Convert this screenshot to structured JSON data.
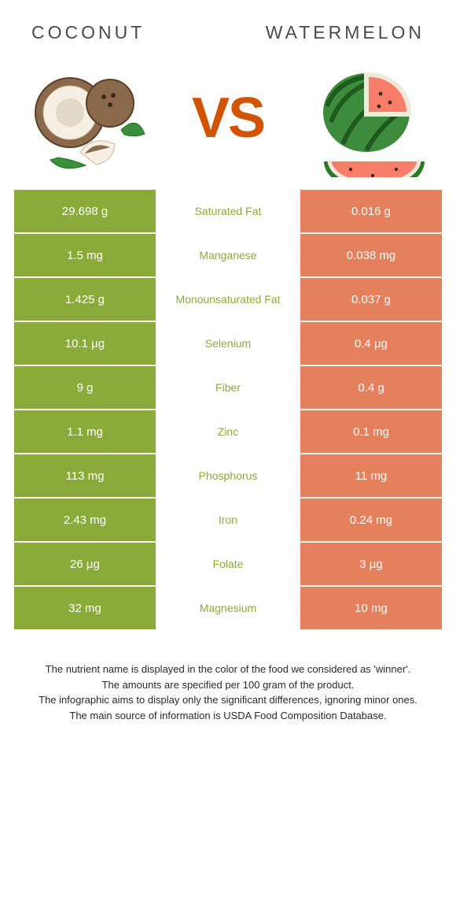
{
  "header": {
    "left_title": "Coconut",
    "right_title": "Watermelon",
    "vs_label": "VS"
  },
  "colors": {
    "left_cell_bg": "#8aab3a",
    "right_cell_bg": "#e5805d",
    "left_winner_text": "#8aab3a",
    "right_winner_text": "#e5805d",
    "title_text": "#4a4a4a",
    "vs_text": "#d35400",
    "cell_text": "#ffffff",
    "footer_text": "#2a2a2a"
  },
  "rows": [
    {
      "left": "29.698 g",
      "label": "Saturated Fat",
      "right": "0.016 g",
      "winner": "left"
    },
    {
      "left": "1.5 mg",
      "label": "Manganese",
      "right": "0.038 mg",
      "winner": "left"
    },
    {
      "left": "1.425 g",
      "label": "Monounsaturated Fat",
      "right": "0.037 g",
      "winner": "left"
    },
    {
      "left": "10.1 µg",
      "label": "Selenium",
      "right": "0.4 µg",
      "winner": "left"
    },
    {
      "left": "9 g",
      "label": "Fiber",
      "right": "0.4 g",
      "winner": "left"
    },
    {
      "left": "1.1 mg",
      "label": "Zinc",
      "right": "0.1 mg",
      "winner": "left"
    },
    {
      "left": "113 mg",
      "label": "Phosphorus",
      "right": "11 mg",
      "winner": "left"
    },
    {
      "left": "2.43 mg",
      "label": "Iron",
      "right": "0.24 mg",
      "winner": "left"
    },
    {
      "left": "26 µg",
      "label": "Folate",
      "right": "3 µg",
      "winner": "left"
    },
    {
      "left": "32 mg",
      "label": "Magnesium",
      "right": "10 mg",
      "winner": "left"
    }
  ],
  "footer": {
    "line1": "The nutrient name is displayed in the color of the food we considered as 'winner'.",
    "line2": "The amounts are specified per 100 gram of the product.",
    "line3": "The infographic aims to display only the significant differences, ignoring minor ones.",
    "line4": "The main source of information is USDA Food Composition Database."
  }
}
